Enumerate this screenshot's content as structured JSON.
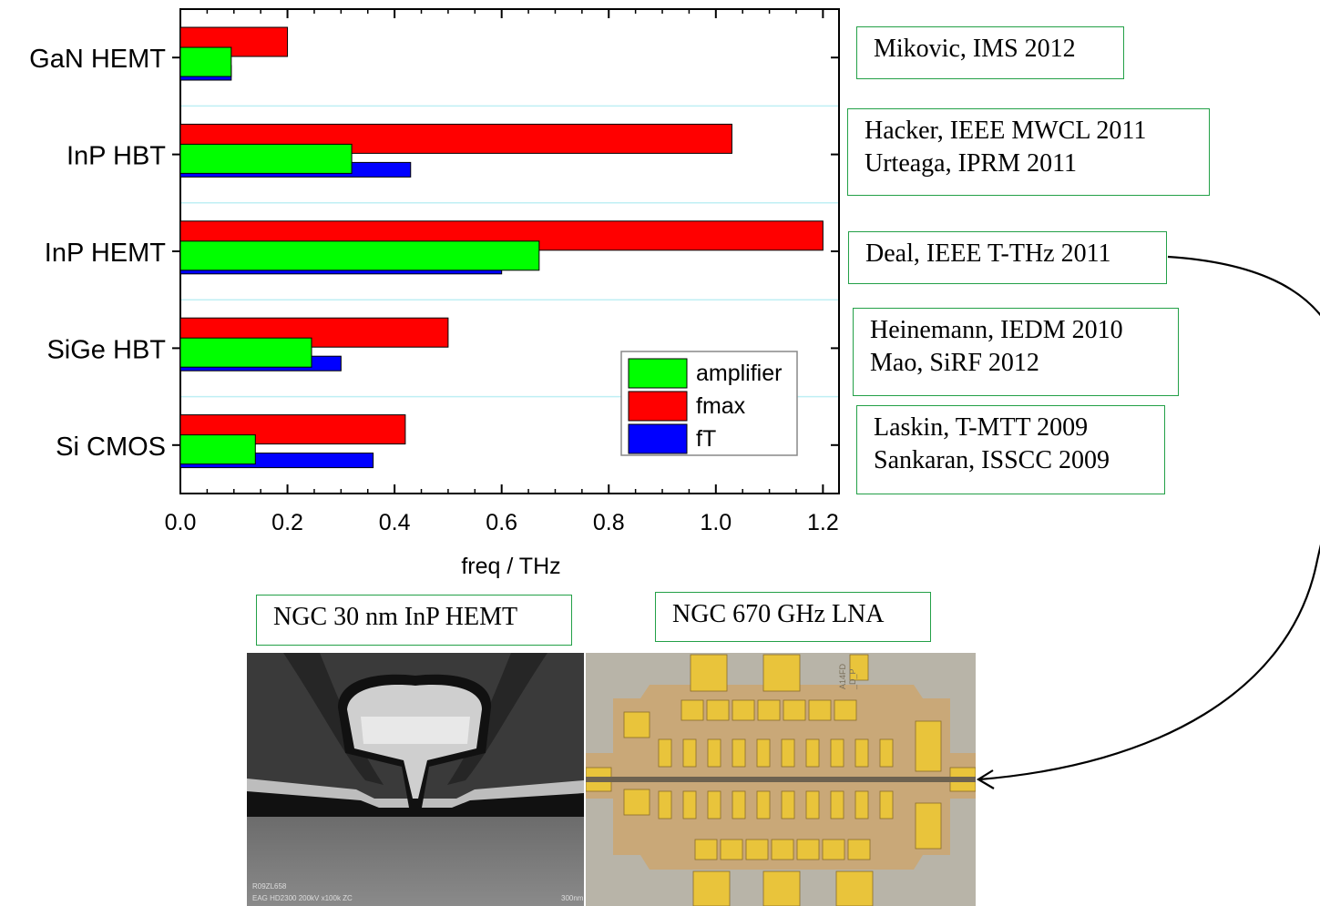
{
  "chart_data": {
    "type": "bar",
    "orientation": "horizontal",
    "categories": [
      "GaN HEMT",
      "InP HBT",
      "InP HEMT",
      "SiGe HBT",
      "Si CMOS"
    ],
    "series": [
      {
        "name": "amplifier",
        "color": "#00ff00",
        "values": [
          0.095,
          0.32,
          0.67,
          0.245,
          0.14
        ]
      },
      {
        "name": "fmax",
        "color": "#ff0000",
        "values": [
          0.2,
          1.03,
          1.2,
          0.5,
          0.42
        ]
      },
      {
        "name": "fT",
        "color": "#0000ff",
        "values": [
          0.095,
          0.43,
          0.6,
          0.3,
          0.36
        ]
      }
    ],
    "xlabel": "freq / THz",
    "xlim": [
      0,
      1.23
    ],
    "xticks": [
      "0.0",
      "0.2",
      "0.4",
      "0.6",
      "0.8",
      "1.0",
      "1.2"
    ],
    "xtick_values": [
      0,
      0.2,
      0.4,
      0.6,
      0.8,
      1.0,
      1.2
    ],
    "legend_position": "bottom-right",
    "separator_color": "#bfeff4",
    "grid": false
  },
  "references": [
    {
      "lines": [
        "Mikovic, IMS 2012"
      ]
    },
    {
      "lines": [
        "Hacker, IEEE MWCL 2011",
        "Urteaga, IPRM 2011"
      ]
    },
    {
      "lines": [
        "Deal, IEEE T-THz 2011"
      ]
    },
    {
      "lines": [
        "Heinemann, IEDM 2010",
        "Mao, SiRF 2012"
      ]
    },
    {
      "lines": [
        "Laskin, T-MTT 2009",
        "Sankaran, ISSCC 2009"
      ]
    }
  ],
  "photos": {
    "hemt_label": "NGC 30 nm InP HEMT",
    "lna_label": "NGC 670 GHz LNA",
    "sem_id": "R09ZL658",
    "sem_caption": "EAG HD2300  200kV  x100k  ZC",
    "sem_scale": "300nm",
    "chip_id": "A14FD",
    "chip_sub": "_D_P"
  },
  "colors": {
    "ref_border": "#23a047",
    "chip_gold": "#e9c43b",
    "chip_base": "#c9a878"
  }
}
